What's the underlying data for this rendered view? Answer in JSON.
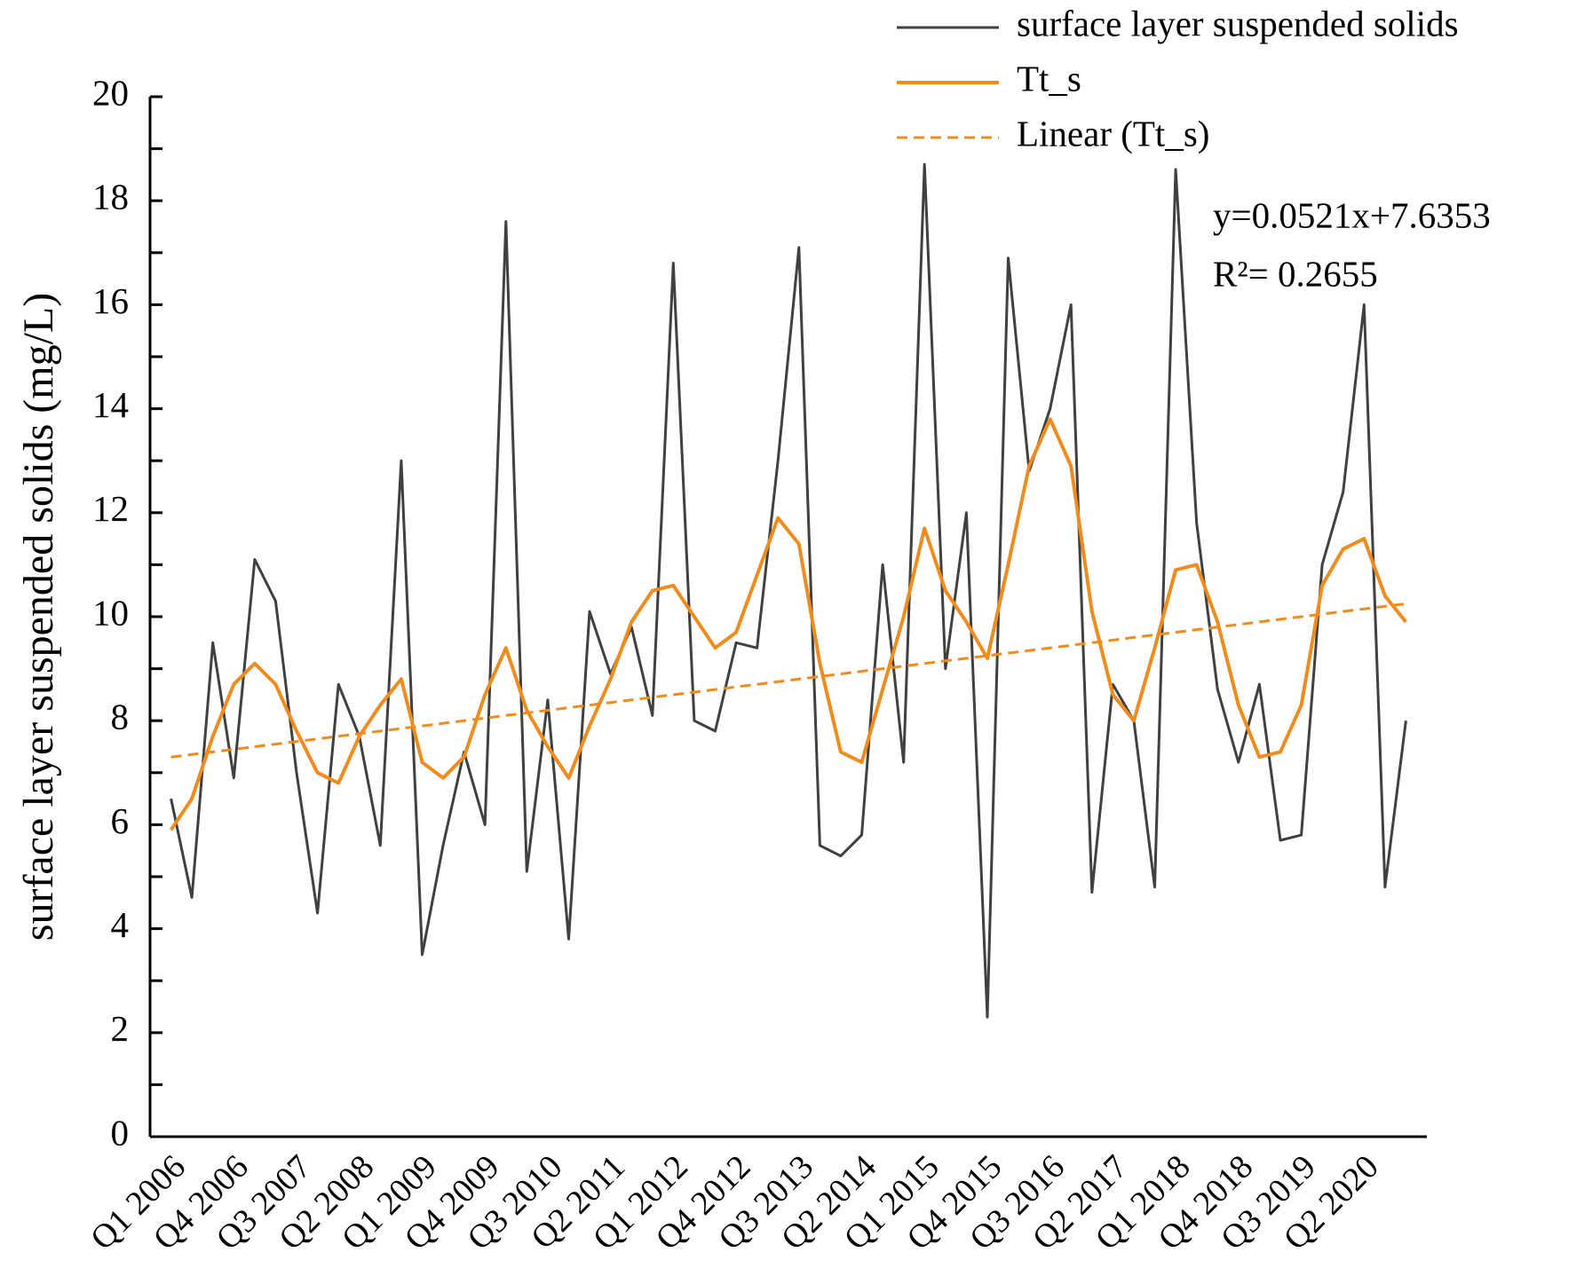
{
  "chart_data": {
    "type": "line",
    "y_label": "surface layer suspended solids (mg/L)",
    "annotations": [
      "y=0.0521x+7.6353",
      "R²= 0.2655"
    ],
    "categories": [
      "Q1 2006",
      null,
      null,
      "Q4 2006",
      null,
      null,
      "Q3 2007",
      null,
      null,
      "Q2 2008",
      null,
      null,
      "Q1 2009",
      null,
      null,
      "Q4 2009",
      null,
      null,
      "Q3 2010",
      null,
      null,
      "Q2 2011",
      null,
      null,
      "Q1 2012",
      null,
      null,
      "Q4 2012",
      null,
      null,
      "Q3 2013",
      null,
      null,
      "Q2 2014",
      null,
      null,
      "Q1 2015",
      null,
      null,
      "Q4 2015",
      null,
      null,
      "Q3 2016",
      null,
      null,
      "Q2 2017",
      null,
      null,
      "Q1 2018",
      null,
      null,
      "Q4 2018",
      null,
      null,
      "Q3 2019",
      null,
      null,
      "Q2 2020",
      null,
      null
    ],
    "series": [
      {
        "name": "surface layer suspended solids",
        "color": "#404040",
        "dash": false,
        "values": [
          6.5,
          4.6,
          9.5,
          6.9,
          11.1,
          10.3,
          7.0,
          4.3,
          8.7,
          7.7,
          5.6,
          13.0,
          3.5,
          5.6,
          7.4,
          6.0,
          17.6,
          5.1,
          8.4,
          3.8,
          10.1,
          8.9,
          9.8,
          8.1,
          16.8,
          8.0,
          7.8,
          9.5,
          9.4,
          13.0,
          17.1,
          5.6,
          5.4,
          5.8,
          11.0,
          7.2,
          18.7,
          9.0,
          12.0,
          2.3,
          16.9,
          12.8,
          14.0,
          16.0,
          4.7,
          8.7,
          8.0,
          4.8,
          18.6,
          11.8,
          8.6,
          7.2,
          8.7,
          5.7,
          5.8,
          11.0,
          12.4,
          16.0,
          4.8,
          8.0
        ]
      },
      {
        "name": "Tt_s",
        "color": "#f08c1e",
        "dash": false,
        "values": [
          5.9,
          6.5,
          7.7,
          8.7,
          9.1,
          8.7,
          7.8,
          7.0,
          6.8,
          7.7,
          8.3,
          8.8,
          7.2,
          6.9,
          7.3,
          8.5,
          9.4,
          8.2,
          7.5,
          6.9,
          7.9,
          8.8,
          9.9,
          10.5,
          10.6,
          10.0,
          9.4,
          9.7,
          10.8,
          11.9,
          11.4,
          9.1,
          7.4,
          7.2,
          8.6,
          10.0,
          11.7,
          10.5,
          9.9,
          9.2,
          11.0,
          12.9,
          13.8,
          12.9,
          10.1,
          8.5,
          8.0,
          9.4,
          10.9,
          11.0,
          9.9,
          8.3,
          7.3,
          7.4,
          8.3,
          10.6,
          11.3,
          11.5,
          10.4,
          9.9
        ]
      },
      {
        "name": "Linear (Tt_s)",
        "color": "#f08c1e",
        "dash": true,
        "values": [
          7.3,
          7.35,
          7.4,
          7.45,
          7.5,
          7.55,
          7.6,
          7.65,
          7.7,
          7.75,
          7.8,
          7.85,
          7.9,
          7.95,
          8.0,
          8.05,
          8.1,
          8.15,
          8.2,
          8.25,
          8.3,
          8.35,
          8.4,
          8.45,
          8.5,
          8.55,
          8.6,
          8.65,
          8.7,
          8.75,
          8.8,
          8.85,
          8.9,
          8.95,
          9.0,
          9.05,
          9.1,
          9.15,
          9.2,
          9.25,
          9.3,
          9.35,
          9.4,
          9.45,
          9.5,
          9.55,
          9.6,
          9.65,
          9.7,
          9.75,
          9.8,
          9.85,
          9.9,
          9.95,
          10.0,
          10.05,
          10.1,
          10.15,
          10.2,
          10.25
        ]
      }
    ],
    "ylim": [
      0,
      20
    ],
    "yticks": [
      0,
      2,
      4,
      6,
      8,
      10,
      12,
      14,
      16,
      18,
      20
    ]
  }
}
